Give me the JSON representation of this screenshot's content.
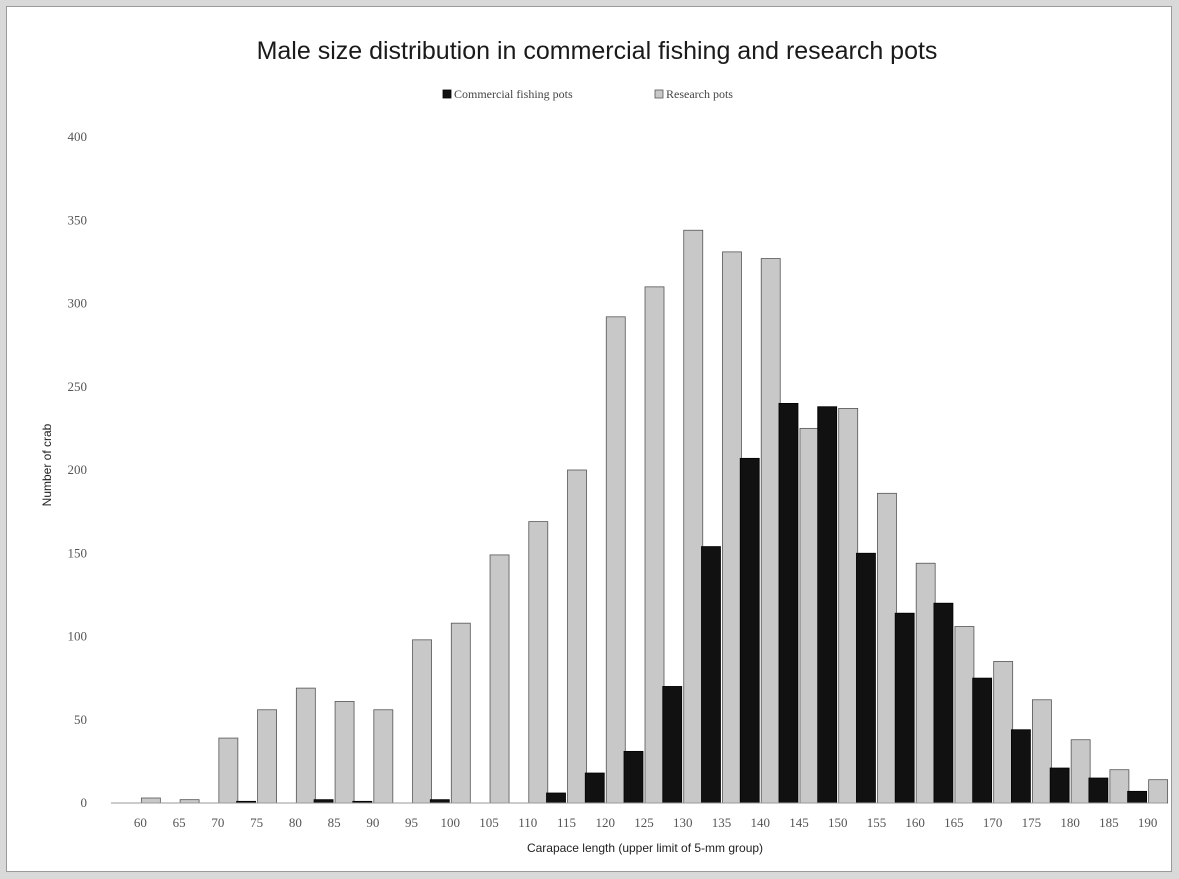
{
  "chart_data": {
    "type": "bar",
    "title": "Male size distribution in commercial fishing and research pots",
    "xlabel": "Carapace length (upper limit of 5-mm group)",
    "ylabel": "Number of crab",
    "ylim": [
      0,
      400
    ],
    "yticks": [
      0,
      50,
      100,
      150,
      200,
      250,
      300,
      350,
      400
    ],
    "grid": false,
    "legend_position": "top-center",
    "categories": [
      "60",
      "65",
      "70",
      "75",
      "80",
      "85",
      "90",
      "95",
      "100",
      "105",
      "110",
      "115",
      "120",
      "125",
      "130",
      "135",
      "140",
      "145",
      "150",
      "155",
      "160",
      "165",
      "170",
      "175",
      "180",
      "185",
      "190"
    ],
    "series": [
      {
        "name": "Commercial fishing pots",
        "color": "#111111",
        "values": [
          0,
          0,
          0,
          1,
          0,
          2,
          1,
          0,
          2,
          0,
          0,
          6,
          18,
          31,
          70,
          154,
          207,
          240,
          238,
          150,
          114,
          120,
          75,
          44,
          21,
          15,
          7
        ]
      },
      {
        "name": "Research pots",
        "color": "#c8c8c8",
        "values": [
          3,
          2,
          39,
          56,
          69,
          61,
          56,
          98,
          108,
          149,
          169,
          200,
          292,
          310,
          344,
          331,
          327,
          225,
          237,
          186,
          144,
          106,
          85,
          62,
          38,
          20,
          14
        ]
      }
    ]
  }
}
